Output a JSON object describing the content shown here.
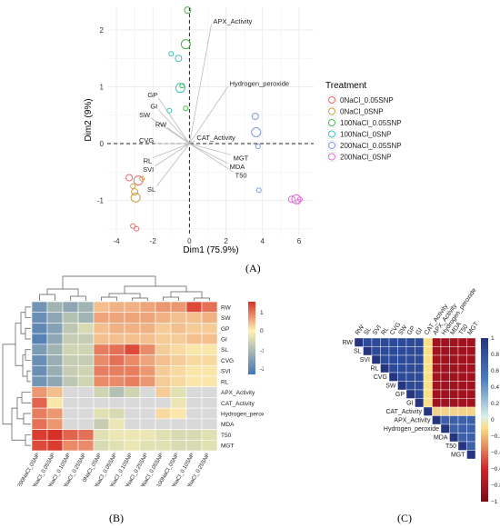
{
  "labels": {
    "a": "(A)",
    "b": "(B)",
    "c": "(C)"
  },
  "chart_data": [
    {
      "type": "scatter",
      "xlabel": "Dim1 (75.9%)",
      "ylabel": "Dim2 (9%)",
      "xlim": [
        -4.5,
        6.8
      ],
      "ylim": [
        -1.6,
        2.4
      ],
      "xticks": [
        -4,
        -2,
        0,
        2,
        4,
        6
      ],
      "yticks": [
        -1,
        0,
        1,
        2
      ],
      "grid": true,
      "legend": "right",
      "legend_title": "Treatment",
      "series": [
        {
          "name": "0NaCl_0.05SNP",
          "color": "#ec6b6b",
          "points": [
            [
              -3.3,
              -0.6
            ],
            [
              -2.8,
              -0.65
            ],
            [
              -3.1,
              -1.45
            ],
            [
              -2.9,
              -1.5
            ]
          ]
        },
        {
          "name": "0NaCl_0SNP",
          "color": "#c9a348",
          "points": [
            [
              -3.0,
              -0.85
            ],
            [
              -2.95,
              -0.95
            ],
            [
              -2.6,
              -0.62
            ],
            [
              -3.1,
              -0.75
            ]
          ]
        },
        {
          "name": "100NaCl_0.05SNP",
          "color": "#48b548",
          "points": [
            [
              -0.1,
              2.35
            ],
            [
              -0.2,
              1.75
            ],
            [
              -0.4,
              1.02
            ],
            [
              -0.2,
              0.62
            ]
          ]
        },
        {
          "name": "100NaCl_0SNP",
          "color": "#3ec2b8",
          "points": [
            [
              -0.6,
              1.5
            ],
            [
              -0.5,
              0.98
            ],
            [
              -1.0,
              1.58
            ],
            [
              -1.1,
              0.58
            ]
          ]
        },
        {
          "name": "200NaCl_0.05SNP",
          "color": "#7c9be0",
          "points": [
            [
              3.6,
              0.48
            ],
            [
              3.65,
              0.2
            ],
            [
              3.75,
              -0.05
            ],
            [
              3.8,
              -0.82
            ]
          ]
        },
        {
          "name": "200NaCl_0SNP",
          "color": "#e36fd6",
          "points": [
            [
              5.6,
              -0.98
            ],
            [
              5.85,
              -0.98
            ],
            [
              6.05,
              -0.98
            ],
            [
              5.95,
              -1.02
            ]
          ]
        }
      ],
      "vectors": [
        {
          "name": "APX_Activity",
          "x": 1.2,
          "y": 2.1
        },
        {
          "name": "Hydrogen_peroxide",
          "x": 2.1,
          "y": 1.0
        },
        {
          "name": "GP",
          "x": -1.7,
          "y": 0.8
        },
        {
          "name": "GI",
          "x": -1.7,
          "y": 0.6
        },
        {
          "name": "SW",
          "x": -2.1,
          "y": 0.45
        },
        {
          "name": "RW",
          "x": -1.2,
          "y": 0.28
        },
        {
          "name": "CAT_Activity",
          "x": 0.3,
          "y": 0.05
        },
        {
          "name": "CVG",
          "x": -1.9,
          "y": 0.0
        },
        {
          "name": "RL",
          "x": -2.0,
          "y": -0.25
        },
        {
          "name": "SVI",
          "x": -1.9,
          "y": -0.4
        },
        {
          "name": "SL",
          "x": -1.8,
          "y": -0.75
        },
        {
          "name": "MGT",
          "x": 2.3,
          "y": -0.2
        },
        {
          "name": "MDA",
          "x": 2.1,
          "y": -0.35
        },
        {
          "name": "T50",
          "x": 2.4,
          "y": -0.5
        }
      ]
    },
    {
      "type": "heatmap",
      "colorbar_ticks": [
        1,
        0,
        -1,
        -2
      ],
      "colorbar_colors": [
        "#d73027",
        "#fdf3b3",
        "#4575b4"
      ],
      "rows": [
        "RW",
        "SW",
        "GP",
        "GI",
        "SL",
        "CVG",
        "SVI",
        "RL",
        "APX_Activity",
        "CAT_Activity",
        "Hydrogen_peroxide",
        "MDA",
        "T50",
        "MGT"
      ],
      "columns": [
        "200NaCl_0SNP",
        "200NaCl_0.05SNP",
        "200NaCl_0.10SNP",
        "200NaCl_0.25SNP",
        "0NaCl_0SNP",
        "0NaCl_0.05SNP",
        "0NaCl_0.10SNP",
        "0NaCl_0.25SNP",
        "100NaCl_0.05SNP",
        "100NaCl_0SNP",
        "100NaCl_0.10SNP",
        "100NaCl_0.25SNP"
      ],
      "values": [
        [
          -1.5,
          -1.0,
          -1.2,
          -1.0,
          0.4,
          0.5,
          0.5,
          0.6,
          0.7,
          0.7,
          1.3,
          1.0
        ],
        [
          -1.6,
          -1.2,
          -0.8,
          -1.0,
          0.6,
          0.6,
          0.6,
          0.6,
          0.5,
          0.4,
          0.4,
          0.5
        ],
        [
          -1.7,
          -1.3,
          -0.7,
          -0.4,
          0.4,
          0.5,
          0.5,
          0.5,
          0.3,
          0.4,
          0.3,
          0.3
        ],
        [
          -1.8,
          -1.2,
          -0.6,
          -0.6,
          0.4,
          0.4,
          0.4,
          0.4,
          0.3,
          0.3,
          0.4,
          0.4
        ],
        [
          -1.4,
          -1.0,
          -0.5,
          -0.5,
          0.9,
          1.0,
          1.3,
          0.8,
          0.3,
          0.2,
          0.1,
          0.1
        ],
        [
          -1.6,
          -1.1,
          -0.6,
          -0.6,
          0.8,
          1.0,
          0.8,
          0.6,
          0.4,
          0.3,
          0.2,
          0.2
        ],
        [
          -1.6,
          -1.1,
          -0.6,
          -0.5,
          0.9,
          0.9,
          0.9,
          0.7,
          0.3,
          0.2,
          0.1,
          0.1
        ],
        [
          -1.5,
          -1.2,
          -0.7,
          -0.5,
          0.8,
          0.8,
          0.9,
          0.7,
          0.3,
          0.2,
          0.1,
          0.1
        ],
        [
          0.7,
          0.4,
          null,
          null,
          -0.5,
          -0.8,
          -0.5,
          null,
          0.3,
          -0.3,
          null,
          null
        ],
        [
          1.1,
          0.1,
          null,
          null,
          null,
          null,
          null,
          null,
          null,
          -0.2,
          null,
          null
        ],
        [
          0.9,
          0.7,
          null,
          null,
          -0.3,
          -0.4,
          null,
          null,
          0.2,
          0.1,
          null,
          null
        ],
        [
          1.0,
          0.7,
          null,
          null,
          -0.6,
          -0.2,
          null,
          null,
          null,
          null,
          null,
          null
        ],
        [
          1.4,
          1.5,
          1.1,
          1.0,
          -0.3,
          -0.2,
          -0.2,
          -0.2,
          -0.3,
          -0.4,
          -0.4,
          -0.3
        ],
        [
          1.3,
          1.4,
          0.8,
          0.8,
          -0.4,
          -0.3,
          -0.2,
          -0.3,
          -0.3,
          -0.4,
          -0.4,
          -0.3
        ]
      ]
    },
    {
      "type": "heatmap",
      "subtype": "correlation-triangle",
      "variables": [
        "RW",
        "SL",
        "SVI",
        "RL",
        "CVG",
        "SW",
        "GP",
        "GI",
        "CAT_Activity",
        "APX_Activity",
        "Hydrogen_peroxide",
        "MDA",
        "T50",
        "MGT"
      ],
      "colorbar_ticks": [
        "1",
        "0.8",
        "0.6",
        "0.4",
        "0.2",
        "0",
        "−0.2",
        "−0.4",
        "−0.6",
        "−0.8",
        "−1"
      ],
      "colorbar_colors": [
        "#26357f",
        "#4b7bc2",
        "#d9f0e6",
        "#f8df8a",
        "#d0242c",
        "#7c0a15"
      ]
    }
  ]
}
